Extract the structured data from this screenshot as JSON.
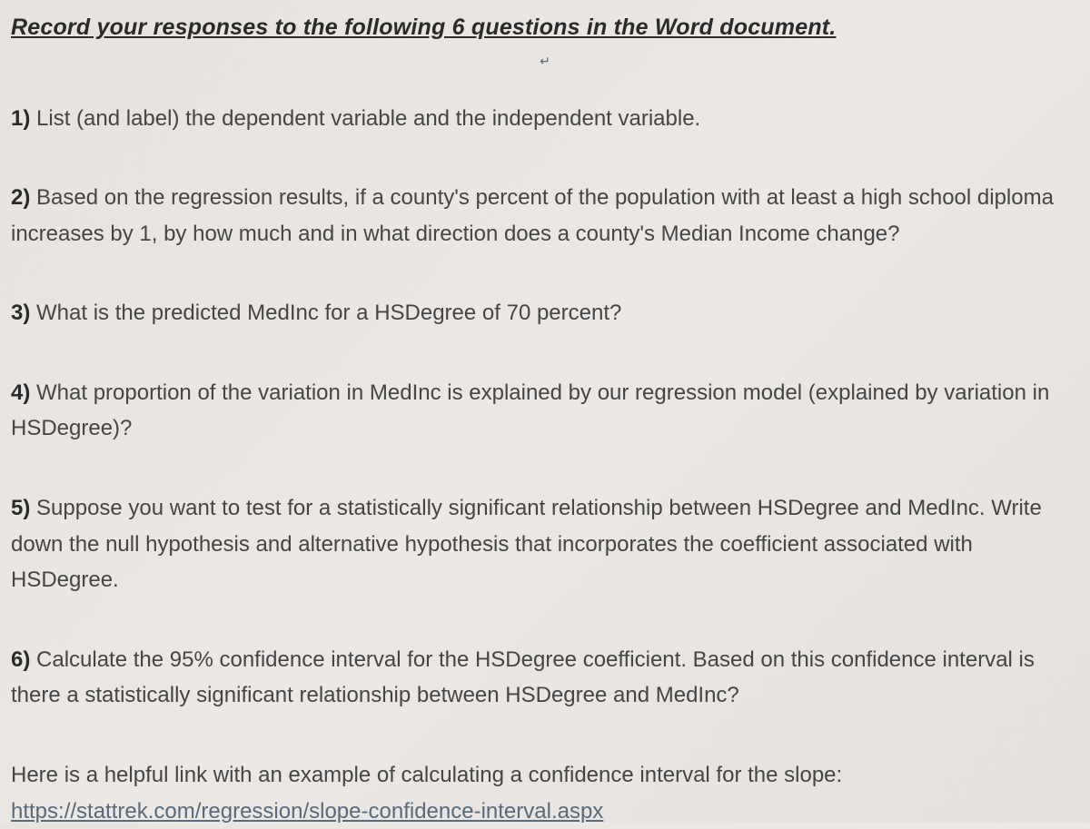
{
  "header": "Record your responses to the following 6 questions in the Word document.",
  "paragraph_marker": "↵",
  "questions": [
    {
      "number": "1)",
      "text": "List (and label) the dependent variable and the independent variable."
    },
    {
      "number": "2)",
      "text": "Based on the regression results, if a county's percent of the population with at least a high school diploma increases by 1, by how much and in what direction does a county's Median Income change?"
    },
    {
      "number": "3)",
      "text": "What is the predicted MedInc for a HSDegree of 70 percent?"
    },
    {
      "number": "4)",
      "text": "What proportion of the variation in MedInc is explained by our regression model (explained by variation in HSDegree)?"
    },
    {
      "number": "5)",
      "text": "Suppose you want to test for a statistically significant relationship between HSDegree and MedInc. Write down the null hypothesis and alternative hypothesis that incorporates the coefficient associated with HSDegree."
    },
    {
      "number": "6)",
      "text": "Calculate the 95% confidence interval for the HSDegree coefficient. Based on this confidence interval is there a statistically significant relationship between HSDegree and MedInc?"
    }
  ],
  "helper_intro": "Here is a helpful link with an example of calculating a confidence interval for the slope:",
  "helper_link": "https://stattrek.com/regression/slope-confidence-interval.aspx",
  "styling": {
    "background_gradient": [
      "#e8e4e0",
      "#ece9e6",
      "#e5e2df"
    ],
    "text_color": "#3a3a3a",
    "bold_color": "#2a2a2a",
    "body_text_color": "#454545",
    "link_color": "#5a6a7a",
    "header_fontsize": 25,
    "body_fontsize": 24,
    "font_family": "Segoe UI",
    "question_spacing": 48,
    "line_height": 1.65
  }
}
